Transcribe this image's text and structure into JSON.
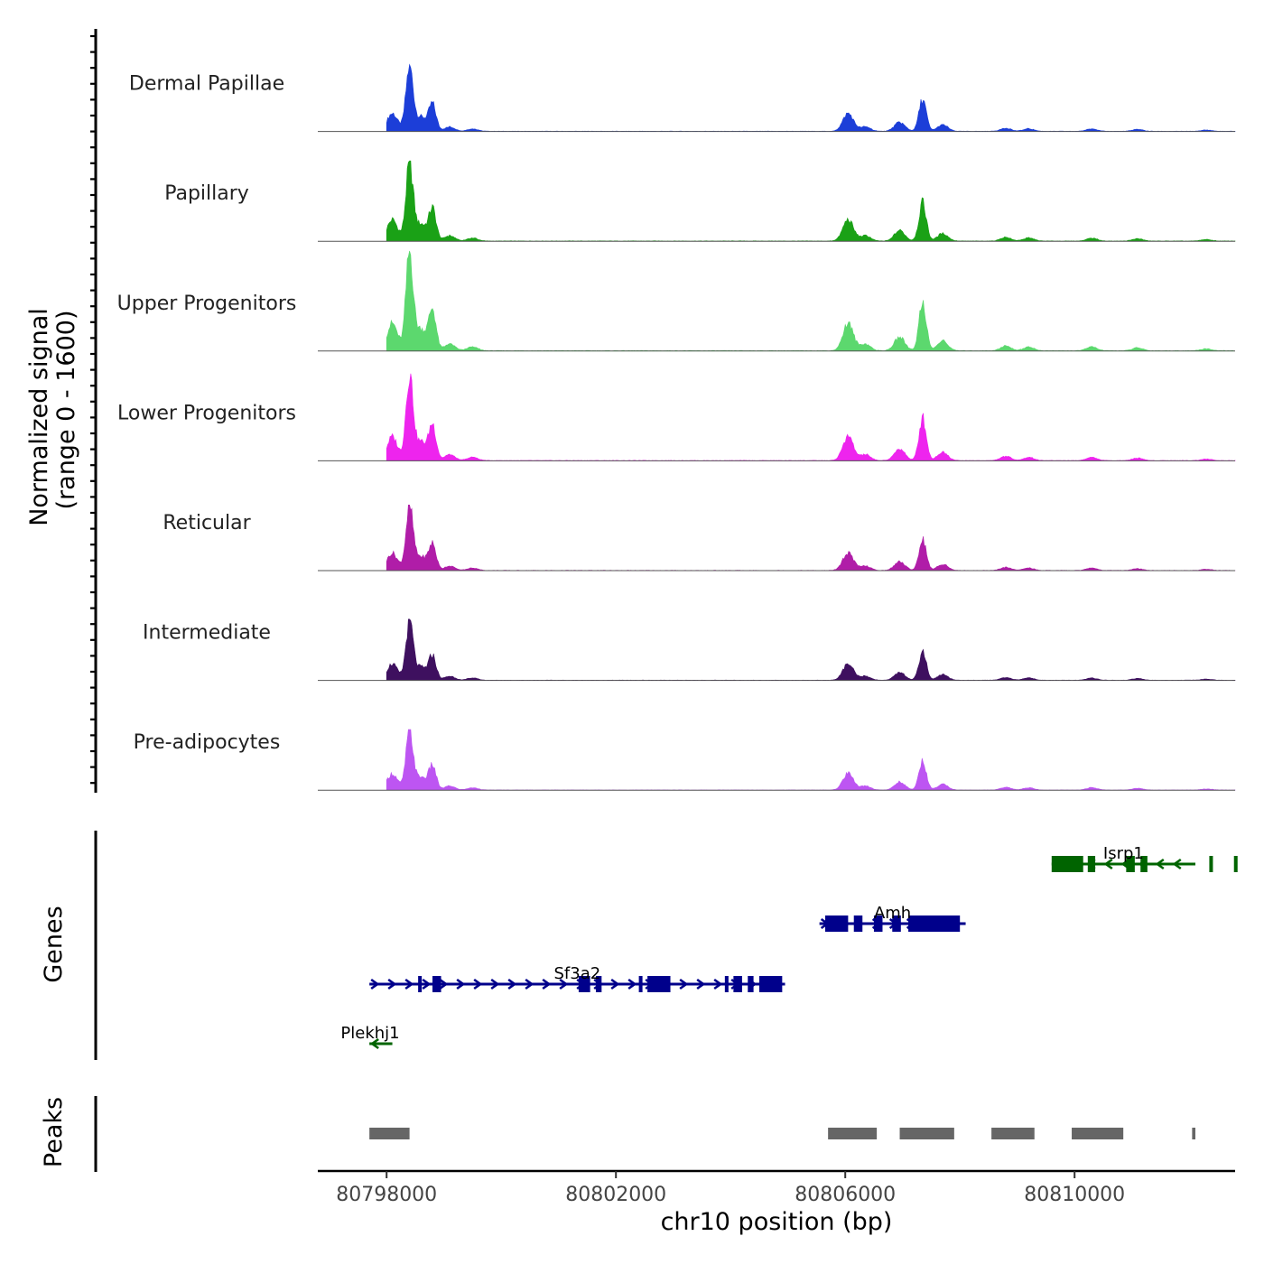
{
  "chart_data": {
    "type": "area",
    "title": "",
    "xlabel": "chr10 position (bp)",
    "xlim": [
      80796800,
      80812800
    ],
    "x_ticks": [
      80798000,
      80802000,
      80806000,
      80810000
    ],
    "x_tick_labels": [
      "80798000",
      "80802000",
      "80806000",
      "80810000"
    ],
    "signal_axis": {
      "label_line1": "Normalized signal",
      "label_line2": "(range 0 - 1600)",
      "ylim": [
        0,
        1600
      ]
    },
    "signal_start": 80798000,
    "signal_end": 80812800,
    "peak_shape": [
      {
        "x": 80798100,
        "y": 0.28
      },
      {
        "x": 80798400,
        "y": 1.0
      },
      {
        "x": 80798600,
        "y": 0.22
      },
      {
        "x": 80798800,
        "y": 0.42
      },
      {
        "x": 80799100,
        "y": 0.07
      },
      {
        "x": 80799500,
        "y": 0.04
      },
      {
        "x": 80806050,
        "y": 0.28
      },
      {
        "x": 80806350,
        "y": 0.07
      },
      {
        "x": 80806950,
        "y": 0.14
      },
      {
        "x": 80807350,
        "y": 0.5
      },
      {
        "x": 80807700,
        "y": 0.1
      },
      {
        "x": 80808800,
        "y": 0.05
      },
      {
        "x": 80809200,
        "y": 0.04
      },
      {
        "x": 80810300,
        "y": 0.04
      },
      {
        "x": 80811100,
        "y": 0.03
      },
      {
        "x": 80812300,
        "y": 0.02
      }
    ],
    "series": [
      {
        "name": "Dermal Papillae",
        "color": "#1c3ed8",
        "max": 1050
      },
      {
        "name": "Papillary",
        "color": "#1aa116",
        "max": 1260
      },
      {
        "name": "Upper Progenitors",
        "color": "#5cd86e",
        "max": 1600
      },
      {
        "name": "Lower Progenitors",
        "color": "#ee24ee",
        "max": 1400
      },
      {
        "name": "Reticular",
        "color": "#b01da8",
        "max": 1030
      },
      {
        "name": "Intermediate",
        "color": "#3e105f",
        "max": 960
      },
      {
        "name": "Pre-adipocytes",
        "color": "#bd55f2",
        "max": 950
      }
    ],
    "genes_label": "Genes",
    "genes": [
      {
        "name": "Isrp1",
        "strand": "-",
        "color": "#006400",
        "start": 80809600,
        "end": 80813400,
        "exons": [
          [
            80809600,
            80810150
          ],
          [
            80810230,
            80810360
          ],
          [
            80810900,
            80811050
          ],
          [
            80811150,
            80811270
          ],
          [
            80812350,
            80812600
          ],
          [
            80812780,
            80812920
          ]
        ]
      },
      {
        "name": "Amh",
        "strand": "+",
        "color": "#00008b",
        "start": 80805550,
        "end": 80808100,
        "exons": [
          [
            80805650,
            80806050
          ],
          [
            80806150,
            80806300
          ],
          [
            80806500,
            80806650
          ],
          [
            80806820,
            80806970
          ],
          [
            80807100,
            80808000
          ]
        ]
      },
      {
        "name": "Sf3a2",
        "strand": "+",
        "color": "#00008b",
        "start": 80797700,
        "end": 80804950,
        "exons": [
          [
            80798550,
            80798600
          ],
          [
            80798800,
            80798950
          ],
          [
            80801350,
            80801550
          ],
          [
            80801650,
            80801750
          ],
          [
            80802400,
            80802450
          ],
          [
            80802550,
            80802950
          ],
          [
            80803900,
            80803950
          ],
          [
            80804050,
            80804200
          ],
          [
            80804300,
            80804400
          ],
          [
            80804500,
            80804900
          ]
        ]
      },
      {
        "name": "Plekhj1",
        "strand": "-",
        "color": "#006400",
        "start": 80797700,
        "end": 80798100,
        "exons": []
      }
    ],
    "peaks_label": "Peaks",
    "peaks": [
      [
        80797700,
        80798400
      ],
      [
        80805700,
        80806550
      ],
      [
        80806950,
        80807900
      ],
      [
        80808550,
        80809300
      ],
      [
        80809950,
        80810850
      ],
      [
        80812050,
        80812650
      ]
    ]
  }
}
